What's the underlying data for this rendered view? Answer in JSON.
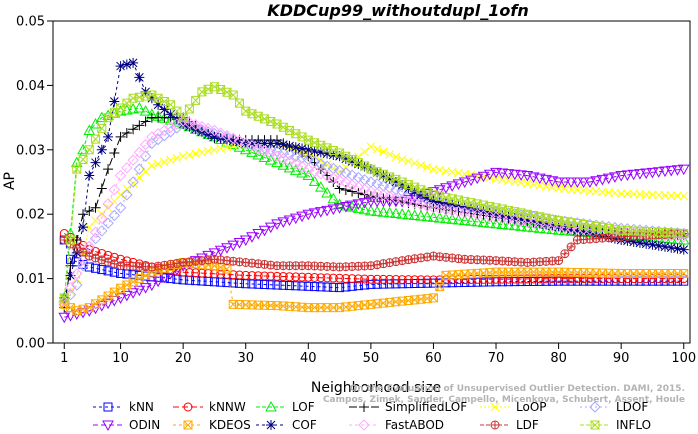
{
  "chart_data": {
    "type": "line",
    "title": "KDDCup99_withoutdupl_1ofn",
    "xlabel": "Neighborhood size",
    "ylabel": "AP",
    "xlim": [
      1,
      100
    ],
    "ylim": [
      0,
      0.05
    ],
    "xticks": [
      1,
      10,
      20,
      30,
      40,
      50,
      60,
      70,
      80,
      90,
      100
    ],
    "yticks": [
      0.0,
      0.01,
      0.02,
      0.03,
      0.04,
      0.05
    ],
    "ytick_labels": [
      "0.00",
      "0.01",
      "0.02",
      "0.03",
      "0.04",
      "0.05"
    ],
    "grid": false,
    "legend_position": "bottom",
    "watermark": [
      "Campos, Zimek, Sander, Campello, Micenkova, Schubert, Assent, Houle",
      "On the Evaluation of Unsupervised Outlier Detection. DAMI, 2015."
    ],
    "series": [
      {
        "name": "kNN",
        "color": "#0000ff",
        "marker": "square",
        "dash": "3,3",
        "points": [
          [
            1,
            0.016
          ],
          [
            2,
            0.013
          ],
          [
            5,
            0.0118
          ],
          [
            10,
            0.0108
          ],
          [
            20,
            0.0098
          ],
          [
            30,
            0.0092
          ],
          [
            40,
            0.0088
          ],
          [
            45,
            0.0086
          ],
          [
            50,
            0.0091
          ],
          [
            60,
            0.0093
          ],
          [
            70,
            0.0095
          ],
          [
            80,
            0.0096
          ],
          [
            90,
            0.0096
          ],
          [
            100,
            0.0096
          ]
        ]
      },
      {
        "name": "kNNW",
        "color": "#ff0000",
        "marker": "circle",
        "dash": "6,3",
        "points": [
          [
            1,
            0.017
          ],
          [
            3,
            0.0158
          ],
          [
            5,
            0.0145
          ],
          [
            10,
            0.013
          ],
          [
            15,
            0.0118
          ],
          [
            20,
            0.011
          ],
          [
            30,
            0.0105
          ],
          [
            40,
            0.0102
          ],
          [
            50,
            0.0099
          ],
          [
            60,
            0.0098
          ],
          [
            70,
            0.0099
          ],
          [
            80,
            0.01
          ],
          [
            90,
            0.01
          ],
          [
            100,
            0.01
          ]
        ]
      },
      {
        "name": "LOF",
        "color": "#00ee00",
        "marker": "triangle-up",
        "dash": "4,2",
        "points": [
          [
            1,
            0.007
          ],
          [
            2,
            0.017
          ],
          [
            3,
            0.028
          ],
          [
            4,
            0.03
          ],
          [
            5,
            0.033
          ],
          [
            7,
            0.035
          ],
          [
            10,
            0.036
          ],
          [
            13,
            0.0365
          ],
          [
            15,
            0.0355
          ],
          [
            20,
            0.034
          ],
          [
            25,
            0.032
          ],
          [
            30,
            0.03
          ],
          [
            35,
            0.028
          ],
          [
            40,
            0.026
          ],
          [
            45,
            0.0215
          ],
          [
            50,
            0.0205
          ],
          [
            60,
            0.0195
          ],
          [
            70,
            0.0185
          ],
          [
            80,
            0.0175
          ],
          [
            90,
            0.0168
          ],
          [
            100,
            0.016
          ]
        ]
      },
      {
        "name": "SimplifiedLOF",
        "color": "#000000",
        "marker": "plus",
        "dash": "8,3",
        "points": [
          [
            1,
            0.0055
          ],
          [
            2,
            0.012
          ],
          [
            4,
            0.02
          ],
          [
            6,
            0.021
          ],
          [
            8,
            0.027
          ],
          [
            10,
            0.032
          ],
          [
            15,
            0.035
          ],
          [
            20,
            0.035
          ],
          [
            25,
            0.0318
          ],
          [
            30,
            0.0315
          ],
          [
            35,
            0.0315
          ],
          [
            40,
            0.029
          ],
          [
            45,
            0.024
          ],
          [
            50,
            0.0228
          ],
          [
            60,
            0.021
          ],
          [
            70,
            0.0195
          ],
          [
            80,
            0.0182
          ],
          [
            90,
            0.0172
          ],
          [
            100,
            0.0168
          ]
        ]
      },
      {
        "name": "LoOP",
        "color": "#ffff00",
        "marker": "x",
        "dash": "2,2",
        "points": [
          [
            1,
            0.006
          ],
          [
            3,
            0.01
          ],
          [
            5,
            0.018
          ],
          [
            7,
            0.02
          ],
          [
            10,
            0.023
          ],
          [
            15,
            0.0275
          ],
          [
            20,
            0.029
          ],
          [
            25,
            0.03
          ],
          [
            30,
            0.031
          ],
          [
            35,
            0.031
          ],
          [
            40,
            0.0295
          ],
          [
            45,
            0.0265
          ],
          [
            50,
            0.0305
          ],
          [
            55,
            0.0285
          ],
          [
            60,
            0.027
          ],
          [
            70,
            0.0255
          ],
          [
            80,
            0.024
          ],
          [
            90,
            0.0232
          ],
          [
            100,
            0.0228
          ]
        ]
      },
      {
        "name": "LDOF",
        "color": "#aaaaff",
        "marker": "diamond",
        "dash": "2,3",
        "points": [
          [
            1,
            0.006
          ],
          [
            3,
            0.009
          ],
          [
            5,
            0.015
          ],
          [
            10,
            0.021
          ],
          [
            15,
            0.031
          ],
          [
            20,
            0.034
          ],
          [
            25,
            0.0325
          ],
          [
            30,
            0.031
          ],
          [
            40,
            0.0285
          ],
          [
            50,
            0.025
          ],
          [
            60,
            0.022
          ],
          [
            70,
            0.0205
          ],
          [
            80,
            0.019
          ],
          [
            90,
            0.0178
          ],
          [
            100,
            0.017
          ]
        ]
      },
      {
        "name": "ODIN",
        "color": "#9900ff",
        "marker": "triangle-down",
        "dash": "5,3",
        "points": [
          [
            1,
            0.004
          ],
          [
            5,
            0.005
          ],
          [
            10,
            0.007
          ],
          [
            15,
            0.009
          ],
          [
            20,
            0.012
          ],
          [
            25,
            0.014
          ],
          [
            30,
            0.016
          ],
          [
            35,
            0.0185
          ],
          [
            40,
            0.02
          ],
          [
            45,
            0.021
          ],
          [
            50,
            0.022
          ],
          [
            55,
            0.022
          ],
          [
            60,
            0.0235
          ],
          [
            65,
            0.025
          ],
          [
            70,
            0.0265
          ],
          [
            75,
            0.026
          ],
          [
            80,
            0.025
          ],
          [
            85,
            0.025
          ],
          [
            90,
            0.026
          ],
          [
            95,
            0.0265
          ],
          [
            100,
            0.027
          ]
        ]
      },
      {
        "name": "KDEOS",
        "color": "#ffaa00",
        "marker": "square-x",
        "dash": "3,3",
        "points": [
          [
            1,
            0.006
          ],
          [
            3,
            0.005
          ],
          [
            5,
            0.0055
          ],
          [
            10,
            0.0085
          ],
          [
            15,
            0.011
          ],
          [
            20,
            0.0125
          ],
          [
            25,
            0.012
          ],
          [
            27,
            0.0115
          ],
          [
            28,
            0.006
          ],
          [
            35,
            0.0058
          ],
          [
            40,
            0.0055
          ],
          [
            45,
            0.0055
          ],
          [
            50,
            0.006
          ],
          [
            55,
            0.0065
          ],
          [
            60,
            0.007
          ],
          [
            62,
            0.0105
          ],
          [
            70,
            0.011
          ],
          [
            80,
            0.011
          ],
          [
            90,
            0.0108
          ],
          [
            100,
            0.0108
          ]
        ]
      },
      {
        "name": "COF",
        "color": "#000080",
        "marker": "star",
        "dash": "3,3",
        "points": [
          [
            1,
            0.007
          ],
          [
            3,
            0.014
          ],
          [
            4,
            0.018
          ],
          [
            5,
            0.026
          ],
          [
            7,
            0.03
          ],
          [
            8,
            0.032
          ],
          [
            10,
            0.043
          ],
          [
            12,
            0.0435
          ],
          [
            14,
            0.039
          ],
          [
            16,
            0.037
          ],
          [
            20,
            0.034
          ],
          [
            25,
            0.032
          ],
          [
            30,
            0.031
          ],
          [
            35,
            0.031
          ],
          [
            40,
            0.03
          ],
          [
            45,
            0.029
          ],
          [
            50,
            0.027
          ],
          [
            60,
            0.022
          ],
          [
            70,
            0.02
          ],
          [
            80,
            0.018
          ],
          [
            90,
            0.016
          ],
          [
            100,
            0.0145
          ]
        ]
      },
      {
        "name": "FastABOD",
        "color": "#ffaaff",
        "marker": "diamond",
        "dash": "3,3",
        "points": [
          [
            1,
            0.0065
          ],
          [
            5,
            0.015
          ],
          [
            10,
            0.026
          ],
          [
            15,
            0.032
          ],
          [
            20,
            0.0345
          ],
          [
            25,
            0.033
          ],
          [
            30,
            0.031
          ],
          [
            40,
            0.027
          ],
          [
            50,
            0.0235
          ],
          [
            60,
            0.021
          ],
          [
            70,
            0.0195
          ],
          [
            80,
            0.018
          ],
          [
            90,
            0.0172
          ],
          [
            100,
            0.0165
          ]
        ]
      },
      {
        "name": "LDF",
        "color": "#cc3333",
        "marker": "circle-plus",
        "dash": "4,2",
        "points": [
          [
            1,
            0.016
          ],
          [
            5,
            0.0135
          ],
          [
            10,
            0.012
          ],
          [
            15,
            0.0118
          ],
          [
            20,
            0.0125
          ],
          [
            25,
            0.013
          ],
          [
            30,
            0.0125
          ],
          [
            35,
            0.012
          ],
          [
            40,
            0.012
          ],
          [
            45,
            0.0118
          ],
          [
            50,
            0.012
          ],
          [
            55,
            0.0128
          ],
          [
            60,
            0.0135
          ],
          [
            65,
            0.013
          ],
          [
            70,
            0.0128
          ],
          [
            75,
            0.0125
          ],
          [
            80,
            0.0128
          ],
          [
            83,
            0.016
          ],
          [
            90,
            0.0165
          ],
          [
            100,
            0.017
          ]
        ]
      },
      {
        "name": "INFLO",
        "color": "#aadd22",
        "marker": "hourglass",
        "dash": "4,2",
        "points": [
          [
            1,
            0.007
          ],
          [
            2,
            0.016
          ],
          [
            3,
            0.027
          ],
          [
            5,
            0.03
          ],
          [
            8,
            0.035
          ],
          [
            12,
            0.038
          ],
          [
            15,
            0.0385
          ],
          [
            18,
            0.037
          ],
          [
            20,
            0.035
          ],
          [
            23,
            0.039
          ],
          [
            25,
            0.0398
          ],
          [
            28,
            0.0385
          ],
          [
            30,
            0.036
          ],
          [
            35,
            0.034
          ],
          [
            40,
            0.0315
          ],
          [
            45,
            0.0295
          ],
          [
            50,
            0.027
          ],
          [
            55,
            0.025
          ],
          [
            60,
            0.023
          ],
          [
            65,
            0.022
          ],
          [
            70,
            0.021
          ],
          [
            80,
            0.019
          ],
          [
            90,
            0.0175
          ],
          [
            100,
            0.017
          ]
        ]
      }
    ]
  },
  "legend_rows": [
    [
      "kNN",
      "kNNW",
      "LOF",
      "SimplifiedLOF",
      "LoOP",
      "LDOF"
    ],
    [
      "ODIN",
      "KDEOS",
      "COF",
      "FastABOD",
      "LDF",
      "INFLO"
    ]
  ]
}
